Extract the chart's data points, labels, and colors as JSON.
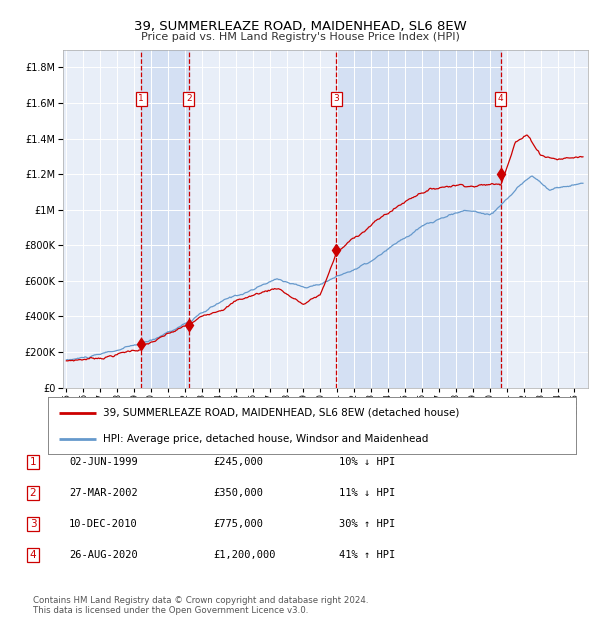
{
  "title": "39, SUMMERLEAZE ROAD, MAIDENHEAD, SL6 8EW",
  "subtitle": "Price paid vs. HM Land Registry's House Price Index (HPI)",
  "title_fontsize": 9.5,
  "subtitle_fontsize": 8.0,
  "plot_bg_color": "#e8eef8",
  "legend_line1": "39, SUMMERLEAZE ROAD, MAIDENHEAD, SL6 8EW (detached house)",
  "legend_line2": "HPI: Average price, detached house, Windsor and Maidenhead",
  "footer": "Contains HM Land Registry data © Crown copyright and database right 2024.\nThis data is licensed under the Open Government Licence v3.0.",
  "transactions": [
    {
      "num": 1,
      "date": "02-JUN-1999",
      "price": 245000,
      "pct": "10%",
      "dir": "↓",
      "year": 1999.42
    },
    {
      "num": 2,
      "date": "27-MAR-2002",
      "price": 350000,
      "pct": "11%",
      "dir": "↓",
      "year": 2002.23
    },
    {
      "num": 3,
      "date": "10-DEC-2010",
      "price": 775000,
      "pct": "30%",
      "dir": "↑",
      "year": 2010.94
    },
    {
      "num": 4,
      "date": "26-AUG-2020",
      "price": 1200000,
      "pct": "41%",
      "dir": "↑",
      "year": 2020.65
    }
  ],
  "red_line_color": "#cc0000",
  "blue_line_color": "#6699cc",
  "marker_color": "#cc0000",
  "dashed_color": "#cc0000",
  "shade_color": "#c8d8f0",
  "ylim_max": 1900000,
  "xlim_start": 1994.8,
  "xlim_end": 2025.8,
  "yticks": [
    0,
    200000,
    400000,
    600000,
    800000,
    1000000,
    1200000,
    1400000,
    1600000,
    1800000
  ],
  "xticks": [
    1995,
    1996,
    1997,
    1998,
    1999,
    2000,
    2001,
    2002,
    2003,
    2004,
    2005,
    2006,
    2007,
    2008,
    2009,
    2010,
    2011,
    2012,
    2013,
    2014,
    2015,
    2016,
    2017,
    2018,
    2019,
    2020,
    2021,
    2022,
    2023,
    2024,
    2025
  ]
}
